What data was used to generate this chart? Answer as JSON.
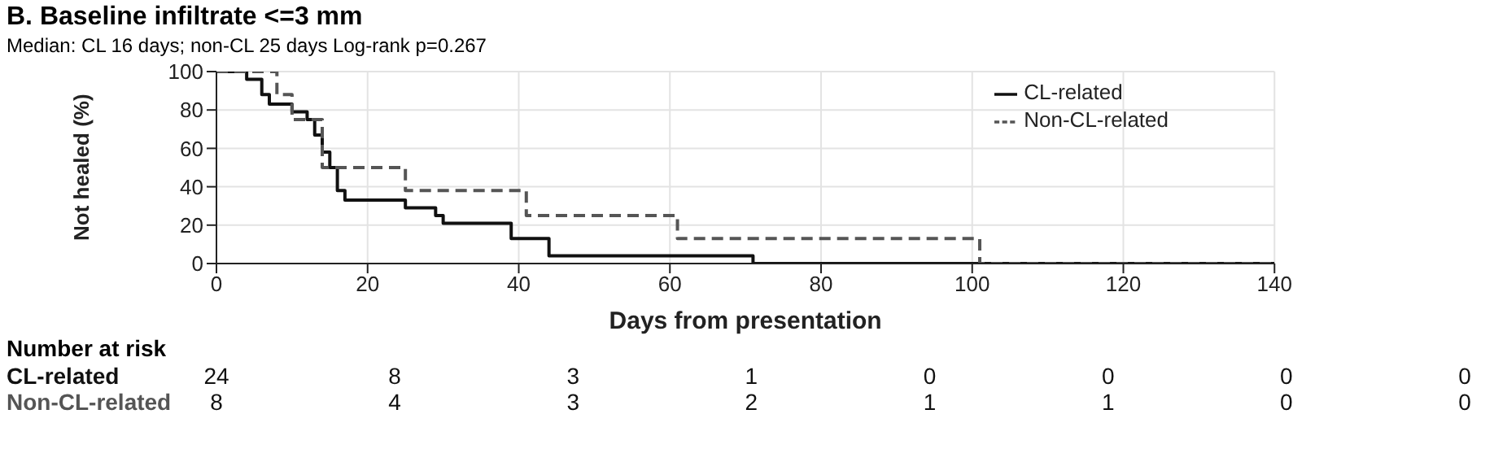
{
  "chart_data": {
    "type": "step",
    "title": "B. Baseline infiltrate <=3 mm",
    "subtitle": "Median: CL 16 days; non-CL 25 days   Log-rank p=0.267",
    "xlabel": "Days from presentation",
    "ylabel": "Not healed (%)",
    "xlim": [
      0,
      140
    ],
    "xticks": [
      0,
      20,
      40,
      60,
      80,
      100,
      120,
      140
    ],
    "ylim": [
      0,
      100
    ],
    "yticks": [
      0,
      20,
      40,
      60,
      80,
      100
    ],
    "grid": true,
    "legend": "top right",
    "marker": "none",
    "series": [
      {
        "name": "CL-related",
        "color": "#111111",
        "line_style": "solid",
        "x": [
          0,
          4,
          6,
          7,
          10,
          12,
          13,
          14,
          15,
          16,
          17,
          25,
          29,
          30,
          39,
          44,
          71,
          140
        ],
        "values": [
          100,
          96,
          88,
          83,
          79,
          75,
          67,
          58,
          50,
          38,
          33,
          29,
          25,
          21,
          13,
          4,
          0,
          0
        ]
      },
      {
        "name": "Non-CL-related",
        "color": "#555555",
        "line_style": "dashed",
        "x": [
          0,
          8,
          10,
          14,
          25,
          41,
          61,
          101,
          140
        ],
        "values": [
          100,
          88,
          75,
          50,
          38,
          25,
          13,
          0,
          0
        ]
      }
    ],
    "annotations": [
      "Number at risk",
      "CL-related",
      "24",
      "8",
      "3",
      "1",
      "0",
      "0",
      "0",
      "0",
      "Non-CL-related",
      "8",
      "4",
      "3",
      "2",
      "1",
      "1",
      "0",
      "0"
    ]
  }
}
